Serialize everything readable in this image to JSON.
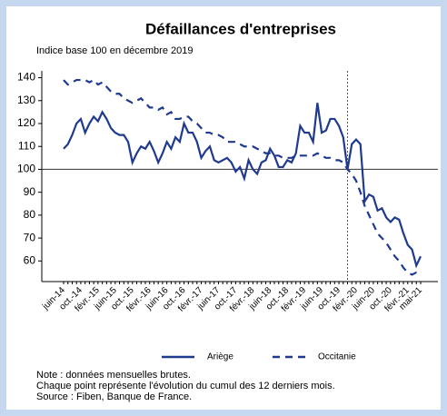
{
  "chart_data": {
    "type": "line",
    "title": "Défaillances d'entreprises",
    "subtitle": "Indice base 100 en décembre 2019",
    "categories": [
      "juin-14",
      null,
      null,
      null,
      "oct.-14",
      null,
      null,
      null,
      "févr.-15",
      null,
      null,
      null,
      "juin-15",
      null,
      null,
      null,
      "oct.-15",
      null,
      null,
      null,
      "févr.-16",
      null,
      null,
      null,
      "juin-16",
      null,
      null,
      null,
      "oct.-16",
      null,
      null,
      null,
      "févr.-17",
      null,
      null,
      null,
      "juin-17",
      null,
      null,
      null,
      "oct.-17",
      null,
      null,
      null,
      "févr.-18",
      null,
      null,
      null,
      "juin-18",
      null,
      null,
      null,
      "oct.-18",
      null,
      null,
      null,
      "févr.-19",
      null,
      null,
      null,
      "juin-19",
      null,
      null,
      null,
      "oct.-19",
      null,
      null,
      null,
      "févr.-20",
      null,
      null,
      null,
      "juin-20",
      null,
      null,
      null,
      "oct.-20",
      null,
      null,
      null,
      "févr.-21",
      null,
      null,
      "mai-21"
    ],
    "series": [
      {
        "name": "Ariège",
        "color": "#1f3a8f",
        "dash": false,
        "values": [
          109,
          111,
          115,
          120,
          122,
          116,
          120,
          123,
          121,
          125,
          122,
          118,
          116,
          115,
          115,
          112,
          103,
          107,
          110,
          109,
          112,
          108,
          103,
          107,
          112,
          109,
          114,
          112,
          120,
          116,
          116,
          112,
          105,
          108,
          110,
          104,
          103,
          104,
          105,
          103,
          99,
          101,
          96,
          104,
          100,
          98,
          103,
          104,
          109,
          106,
          101,
          101,
          104,
          103,
          107,
          119,
          116,
          116,
          112,
          129,
          116,
          117,
          122,
          122,
          119,
          114,
          100,
          111,
          113,
          111,
          86,
          89,
          88,
          82,
          83,
          79,
          77,
          79,
          78,
          72,
          67,
          65,
          58,
          62
        ]
      },
      {
        "name": "Occitanie",
        "color": "#1f3a8f",
        "dash": true,
        "values": [
          139,
          137,
          138,
          139,
          139,
          139,
          138,
          139,
          137,
          138,
          136,
          134,
          133,
          133,
          131,
          130,
          129,
          130,
          131,
          129,
          127,
          127,
          126,
          127,
          124,
          125,
          122,
          122,
          123,
          123,
          121,
          120,
          118,
          116,
          116,
          115,
          115,
          114,
          112,
          112,
          112,
          111,
          110,
          110,
          110,
          109,
          108,
          107,
          107,
          106,
          106,
          105,
          105,
          105,
          106,
          106,
          106,
          106,
          106,
          107,
          106,
          105,
          105,
          104,
          104,
          103,
          100,
          98,
          95,
          90,
          84,
          80,
          76,
          72,
          70,
          68,
          65,
          62,
          60,
          57,
          55,
          54,
          55,
          55
        ]
      }
    ],
    "ylim": [
      51,
      143
    ],
    "yticks": [
      60,
      70,
      80,
      90,
      100,
      110,
      120,
      130,
      140
    ],
    "hline": 100,
    "vline": 66,
    "grid": false,
    "legend": "bottom",
    "notes": [
      "Note : données mensuelles brutes.",
      "Chaque point représente l'évolution du cumul des 12 derniers mois.",
      "Source : Fiben, Banque de France."
    ]
  }
}
